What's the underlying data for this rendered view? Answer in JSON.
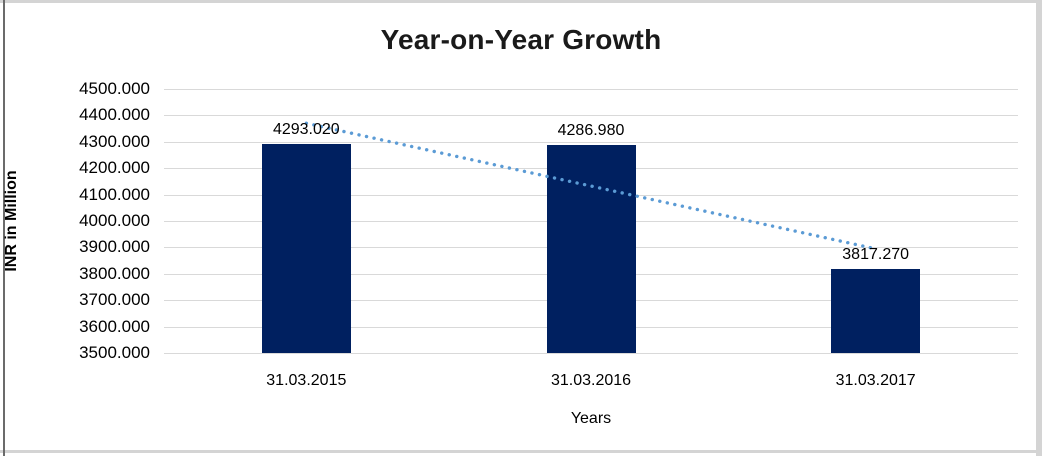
{
  "chart_data": {
    "type": "bar",
    "title": "Year-on-Year Growth",
    "xlabel": "Years",
    "ylabel": "INR in Million",
    "categories": [
      "31.03.2015",
      "31.03.2016",
      "31.03.2017"
    ],
    "values": [
      4293.02,
      4286.98,
      3817.27
    ],
    "value_labels": [
      "4293.020",
      "4286.980",
      "3817.270"
    ],
    "ylim": [
      3500,
      4500
    ],
    "ytick_step": 100,
    "ytick_decimals": 3,
    "grid": true,
    "legend_position": "none",
    "trendline": {
      "type": "linear",
      "style": "dotted",
      "color": "#5b9bd5"
    },
    "colors": {
      "bar": "#002060",
      "gridline": "#d9d9d9",
      "axis_line": "#d9d9d9",
      "text": "#000000",
      "title": "#1a1a1a",
      "frame_light": "#d4d4d4",
      "frame_dark": "#6b6b6b",
      "background": "#ffffff"
    }
  }
}
